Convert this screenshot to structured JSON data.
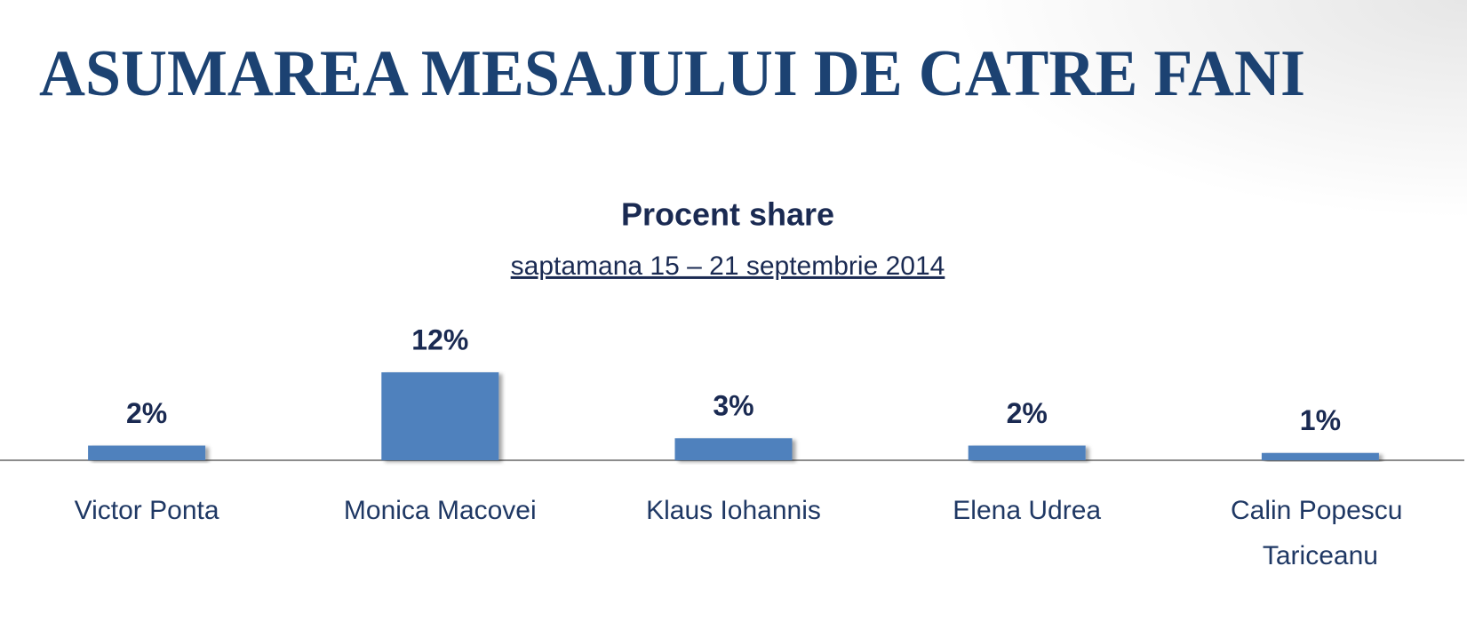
{
  "chart_data": {
    "type": "bar",
    "slide_title": "ASUMAREA MESAJULUI DE CATRE FANI",
    "title": "Procent share",
    "subtitle": "saptamana 15 – 21  septembrie 2014",
    "categories": [
      "Victor Ponta",
      "Monica Macovei",
      "Klaus Iohannis",
      "Elena Udrea",
      "Calin Popescu Tariceanu"
    ],
    "values": [
      2,
      12,
      3,
      2,
      1
    ],
    "value_labels": [
      "2%",
      "12%",
      "3%",
      "2%",
      "1%"
    ],
    "color": "#4f81bd"
  }
}
